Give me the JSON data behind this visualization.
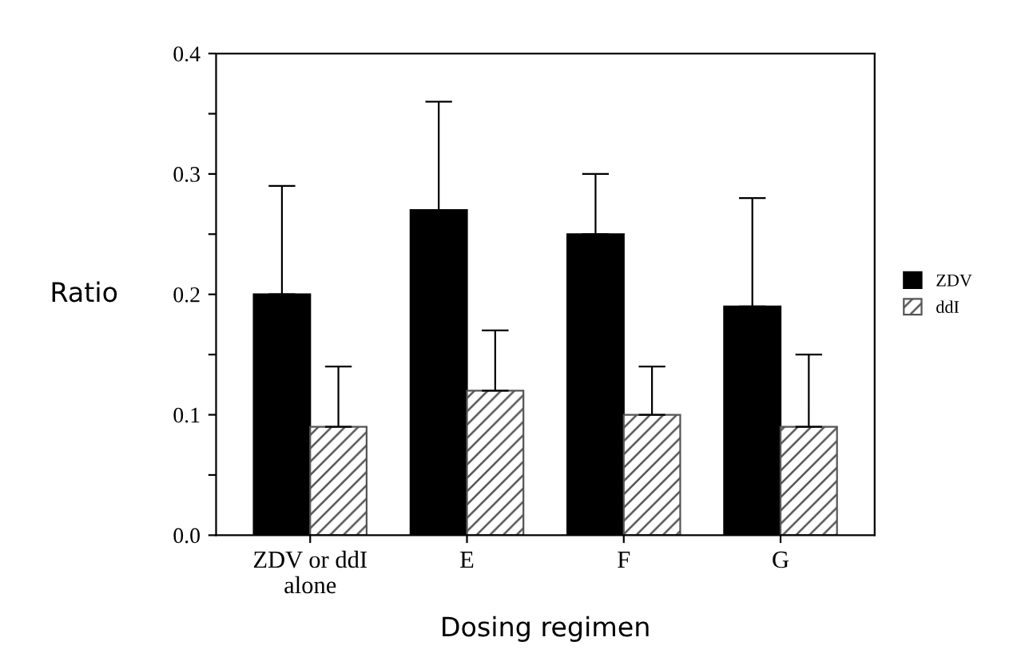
{
  "chart_data": {
    "type": "bar",
    "xlabel": "Dosing regimen",
    "ylabel": "Ratio",
    "categories": [
      "ZDV or ddI\nalone",
      "E",
      "F",
      "G"
    ],
    "series": [
      {
        "name": "ZDV",
        "color": "#000000",
        "values": [
          0.2,
          0.27,
          0.25,
          0.19
        ],
        "errors": [
          [
            0.2,
            0.29
          ],
          [
            0.27,
            0.36
          ],
          [
            0.25,
            0.3
          ],
          [
            0.19,
            0.28
          ]
        ]
      },
      {
        "name": "ddI",
        "color": "#555555",
        "values": [
          0.09,
          0.12,
          0.1,
          0.09
        ],
        "errors": [
          [
            0.09,
            0.14
          ],
          [
            0.12,
            0.17
          ],
          [
            0.1,
            0.14
          ],
          [
            0.09,
            0.15
          ]
        ]
      }
    ],
    "ylim": [
      0,
      0.4
    ],
    "yticks": [
      {
        "value": 0,
        "label": "0.0"
      },
      {
        "value": 0.05,
        "label": null
      },
      0.1,
      {
        "value": 0.15,
        "label": null
      },
      0.2,
      {
        "value": 0.25,
        "label": null
      },
      0.3,
      {
        "value": 0.35,
        "label": null
      },
      0.4
    ],
    "grid": false,
    "legend": "right"
  }
}
